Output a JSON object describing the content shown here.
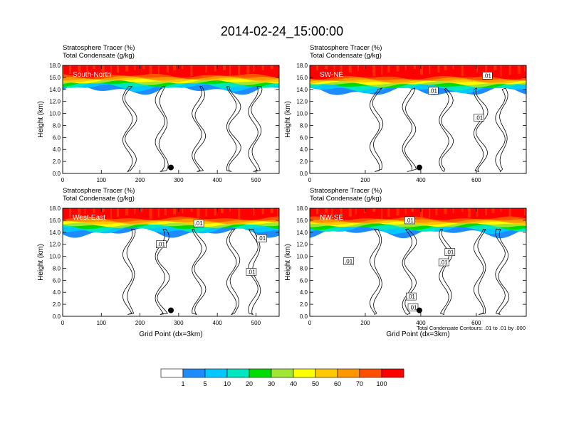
{
  "title": "2014-02-24_15:00:00",
  "footnote": "Total Condensate Contours: .01 to .01 by .000",
  "colors": {
    "levels": [
      "#ffffff",
      "#1e8cff",
      "#00c8ff",
      "#00e6be",
      "#00dc00",
      "#a0e632",
      "#ffff00",
      "#ffc800",
      "#ff9600",
      "#ff5000",
      "#ff0000"
    ],
    "contour": "#000000",
    "marker": "#000000"
  },
  "colorbar": {
    "labels": [
      "1",
      "5",
      "10",
      "20",
      "30",
      "40",
      "50",
      "60",
      "70",
      "100"
    ]
  },
  "chart_data": [
    {
      "type": "heatmap",
      "panel_label": "South-North",
      "subtitle_line1": "Stratosphere Tracer   (%)",
      "subtitle_line2": "Total Condensate   (g/kg)",
      "ylabel": "Height (km)",
      "xlabel": "",
      "xlim": [
        0,
        560
      ],
      "ylim": [
        0,
        18
      ],
      "xticks": [
        "0",
        "100",
        "200",
        "300",
        "400",
        "500"
      ],
      "yticks": [
        "0.0",
        "2.0",
        "4.0",
        "6.0",
        "8.0",
        "10.0",
        "12.0",
        "14.0",
        "16.0",
        "18.0"
      ],
      "tropopause_km": 14.8,
      "marker": {
        "x": 280,
        "y": 1.0
      },
      "contour_labels": []
    },
    {
      "type": "heatmap",
      "panel_label": "SW-NE",
      "subtitle_line1": "Stratosphere Tracer   (%)",
      "subtitle_line2": "Total Condensate   (g/kg)",
      "ylabel": "Height (km)",
      "xlabel": "",
      "xlim": [
        0,
        780
      ],
      "ylim": [
        0,
        18
      ],
      "xticks": [
        "0",
        "200",
        "400",
        "600"
      ],
      "yticks": [
        "0.0",
        "2.0",
        "4.0",
        "6.0",
        "8.0",
        "10.0",
        "12.0",
        "14.0",
        "16.0",
        "18.0"
      ],
      "tropopause_km": 14.5,
      "marker": {
        "x": 395,
        "y": 1.0
      },
      "contour_labels": [
        {
          "x": 640,
          "y": 16.3,
          "text": ".01"
        },
        {
          "x": 445,
          "y": 13.8,
          "text": ".01"
        },
        {
          "x": 610,
          "y": 9.3,
          "text": ".01"
        }
      ]
    },
    {
      "type": "heatmap",
      "panel_label": "West-East",
      "subtitle_line1": "Stratosphere Tracer   (%)",
      "subtitle_line2": "Total Condensate   (g/kg)",
      "ylabel": "Height (km)",
      "xlabel": "Grid Point (dx=3km)",
      "xlim": [
        0,
        560
      ],
      "ylim": [
        0,
        18
      ],
      "xticks": [
        "0",
        "100",
        "200",
        "300",
        "400",
        "500"
      ],
      "yticks": [
        "0.0",
        "2.0",
        "4.0",
        "6.0",
        "8.0",
        "10.0",
        "12.0",
        "14.0",
        "16.0",
        "18.0"
      ],
      "tropopause_km": 14.8,
      "marker": {
        "x": 280,
        "y": 1.0
      },
      "contour_labels": [
        {
          "x": 352,
          "y": 15.5,
          "text": ".01"
        },
        {
          "x": 255,
          "y": 12.0,
          "text": ".01"
        },
        {
          "x": 515,
          "y": 13.0,
          "text": ".01"
        },
        {
          "x": 488,
          "y": 7.4,
          "text": ".01"
        }
      ]
    },
    {
      "type": "heatmap",
      "panel_label": "NW-SE",
      "subtitle_line1": "Stratosphere Tracer   (%)",
      "subtitle_line2": "Total Condensate   (g/kg)",
      "ylabel": "Height (km)",
      "xlabel": "Grid Point (dx=3km)",
      "xlim": [
        0,
        780
      ],
      "ylim": [
        0,
        18
      ],
      "xticks": [
        "0",
        "200",
        "400",
        "600"
      ],
      "yticks": [
        "0.0",
        "2.0",
        "4.0",
        "6.0",
        "8.0",
        "10.0",
        "12.0",
        "14.0",
        "16.0",
        "18.0"
      ],
      "tropopause_km": 14.8,
      "marker": {
        "x": 395,
        "y": 1.0
      },
      "contour_labels": [
        {
          "x": 360,
          "y": 16.0,
          "text": ".01"
        },
        {
          "x": 140,
          "y": 9.2,
          "text": ".01"
        },
        {
          "x": 505,
          "y": 10.7,
          "text": ".01"
        },
        {
          "x": 483,
          "y": 9.0,
          "text": ".01"
        },
        {
          "x": 365,
          "y": 3.3,
          "text": ".01"
        },
        {
          "x": 372,
          "y": 1.5,
          "text": ".01"
        }
      ]
    }
  ]
}
